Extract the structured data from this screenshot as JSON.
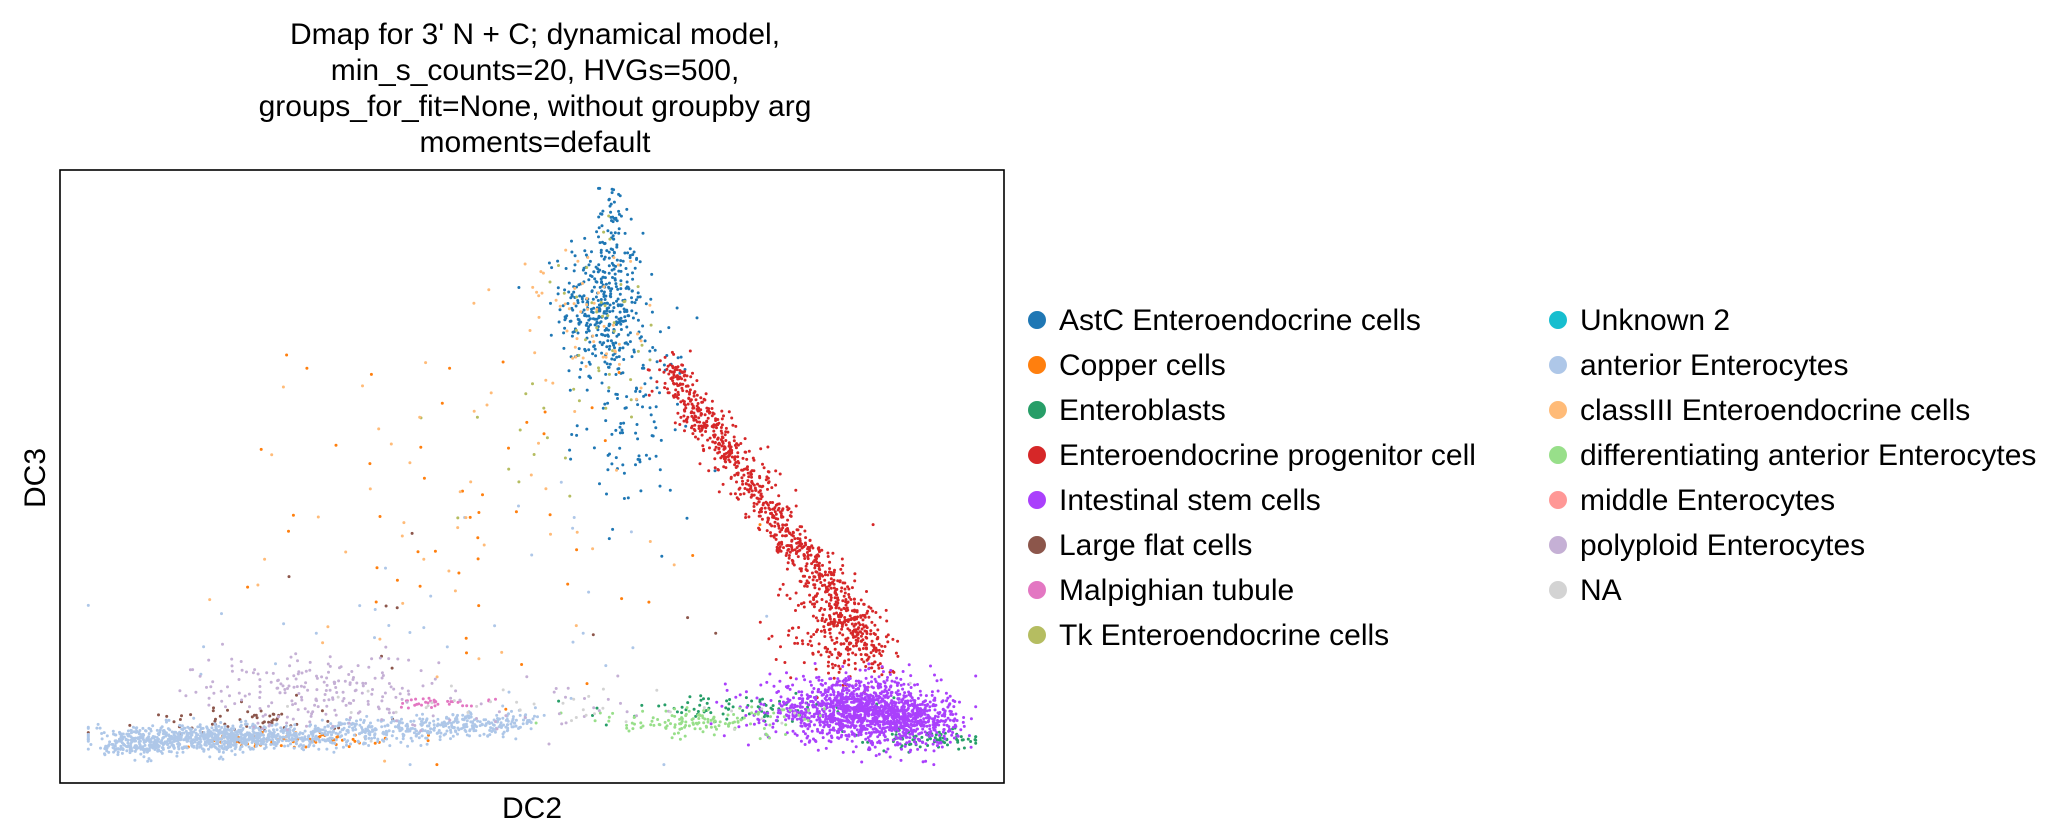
{
  "chart_data": {
    "type": "scatter",
    "title_lines": [
      "Dmap for 3' N + C; dynamical model,",
      "min_s_counts=20, HVGs=500,",
      "groups_for_fit=None, without groupby arg",
      "moments=default"
    ],
    "xlabel": "DC2",
    "ylabel": "DC3",
    "xticks": [],
    "yticks": [],
    "xlim": [
      0,
      1
    ],
    "ylim": [
      0,
      1
    ],
    "grid": false,
    "legend_position": "right",
    "legend_columns": 2,
    "series": [
      {
        "name": "AstC Enteroendocrine cells",
        "color": "#1f77b4",
        "regions": [
          {
            "cx": 0.575,
            "cy": 0.78,
            "sx": 0.022,
            "sy": 0.06,
            "n": 380
          },
          {
            "cx": 0.61,
            "cy": 0.6,
            "sx": 0.03,
            "sy": 0.08,
            "n": 120
          },
          {
            "cx": 0.585,
            "cy": 0.93,
            "sx": 0.008,
            "sy": 0.03,
            "n": 40
          }
        ]
      },
      {
        "name": "Copper cells",
        "color": "#ff7f0e",
        "regions": [
          {
            "cx": 0.24,
            "cy": 0.07,
            "sx": 0.05,
            "sy": 0.006,
            "n": 70
          },
          {
            "cx": 0.45,
            "cy": 0.45,
            "sx": 0.1,
            "sy": 0.15,
            "n": 50
          }
        ]
      },
      {
        "name": "Enteroblasts",
        "color": "#279e68",
        "regions": [
          {
            "cx": 0.72,
            "cy": 0.12,
            "sx": 0.08,
            "sy": 0.012,
            "n": 90
          },
          {
            "cx": 0.92,
            "cy": 0.07,
            "sx": 0.03,
            "sy": 0.008,
            "n": 80
          }
        ]
      },
      {
        "name": "Enteroendocrine progenitor cell",
        "color": "#d62728",
        "line": {
          "x0": 0.64,
          "y0": 0.68,
          "x1": 0.87,
          "y1": 0.2,
          "spread": 0.018,
          "n": 900
        },
        "regions": [
          {
            "cx": 0.82,
            "cy": 0.25,
            "sx": 0.025,
            "sy": 0.05,
            "n": 200
          }
        ]
      },
      {
        "name": "Intestinal stem cells",
        "color": "#aa40fc",
        "regions": [
          {
            "cx": 0.84,
            "cy": 0.12,
            "sx": 0.045,
            "sy": 0.025,
            "n": 1100
          },
          {
            "cx": 0.9,
            "cy": 0.1,
            "sx": 0.025,
            "sy": 0.02,
            "n": 400
          }
        ]
      },
      {
        "name": "Large flat cells",
        "color": "#8c564b",
        "regions": [
          {
            "cx": 0.2,
            "cy": 0.1,
            "sx": 0.05,
            "sy": 0.012,
            "n": 60
          },
          {
            "cx": 0.45,
            "cy": 0.3,
            "sx": 0.12,
            "sy": 0.1,
            "n": 10
          }
        ]
      },
      {
        "name": "Malpighian tubule",
        "color": "#e377c2",
        "regions": [
          {
            "cx": 0.4,
            "cy": 0.13,
            "sx": 0.03,
            "sy": 0.004,
            "n": 35
          }
        ]
      },
      {
        "name": "Tk Enteroendocrine cells",
        "color": "#b5bd61",
        "regions": [
          {
            "cx": 0.58,
            "cy": 0.75,
            "sx": 0.03,
            "sy": 0.08,
            "n": 40
          },
          {
            "cx": 0.5,
            "cy": 0.55,
            "sx": 0.06,
            "sy": 0.06,
            "n": 12
          }
        ]
      },
      {
        "name": "Unknown 2",
        "color": "#17becf",
        "regions": []
      },
      {
        "name": "anterior Enterocytes",
        "color": "#aec7e8",
        "line": {
          "x0": 0.05,
          "y0": 0.06,
          "x1": 0.5,
          "y1": 0.1,
          "spread": 0.01,
          "n": 900
        },
        "regions": [
          {
            "cx": 0.15,
            "cy": 0.075,
            "sx": 0.06,
            "sy": 0.01,
            "n": 500
          },
          {
            "cx": 0.4,
            "cy": 0.25,
            "sx": 0.15,
            "sy": 0.12,
            "n": 40
          }
        ]
      },
      {
        "name": "classIII Enteroendocrine cells",
        "color": "#ffbb78",
        "regions": [
          {
            "cx": 0.55,
            "cy": 0.75,
            "sx": 0.04,
            "sy": 0.07,
            "n": 60
          },
          {
            "cx": 0.4,
            "cy": 0.45,
            "sx": 0.12,
            "sy": 0.15,
            "n": 45
          }
        ]
      },
      {
        "name": "differentiating anterior Enterocytes",
        "color": "#98df8a",
        "regions": [
          {
            "cx": 0.68,
            "cy": 0.1,
            "sx": 0.06,
            "sy": 0.012,
            "n": 140
          }
        ]
      },
      {
        "name": "middle Enterocytes",
        "color": "#ff9896",
        "regions": []
      },
      {
        "name": "polyploid Enterocytes",
        "color": "#c5b0d5",
        "regions": [
          {
            "cx": 0.26,
            "cy": 0.15,
            "sx": 0.06,
            "sy": 0.03,
            "n": 180
          },
          {
            "cx": 0.45,
            "cy": 0.13,
            "sx": 0.12,
            "sy": 0.03,
            "n": 60
          }
        ]
      },
      {
        "name": "NA",
        "color": "#d3d3d3",
        "regions": [
          {
            "cx": 0.55,
            "cy": 0.12,
            "sx": 0.15,
            "sy": 0.02,
            "n": 40
          }
        ]
      }
    ]
  }
}
